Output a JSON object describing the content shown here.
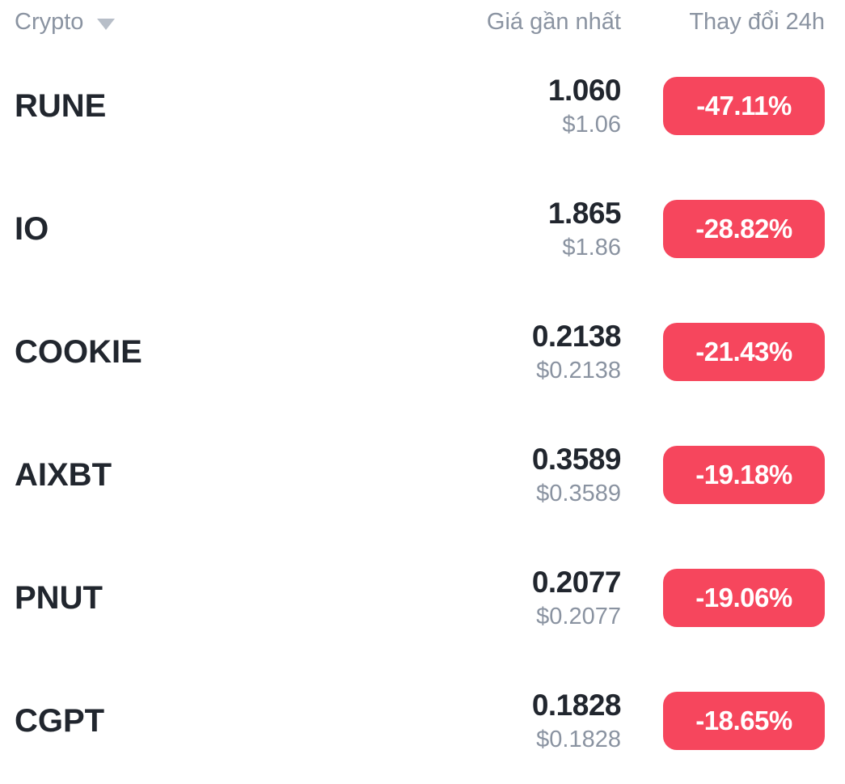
{
  "header": {
    "crypto_label": "Crypto",
    "price_label": "Giá gần nhất",
    "change_label": "Thay đổi 24h"
  },
  "colors": {
    "text_primary": "#21262E",
    "text_secondary": "#8A93A1",
    "caret": "#B7BEC8",
    "badge_negative": "#F6465D",
    "badge_text": "#FFFFFF",
    "background": "#FFFFFF"
  },
  "rows": [
    {
      "symbol": "RUNE",
      "price": "1.060",
      "fiat": "$1.06",
      "change": "-47.11%"
    },
    {
      "symbol": "IO",
      "price": "1.865",
      "fiat": "$1.86",
      "change": "-28.82%"
    },
    {
      "symbol": "COOKIE",
      "price": "0.2138",
      "fiat": "$0.2138",
      "change": "-21.43%"
    },
    {
      "symbol": "AIXBT",
      "price": "0.3589",
      "fiat": "$0.3589",
      "change": "-19.18%"
    },
    {
      "symbol": "PNUT",
      "price": "0.2077",
      "fiat": "$0.2077",
      "change": "-19.06%"
    },
    {
      "symbol": "CGPT",
      "price": "0.1828",
      "fiat": "$0.1828",
      "change": "-18.65%"
    }
  ]
}
